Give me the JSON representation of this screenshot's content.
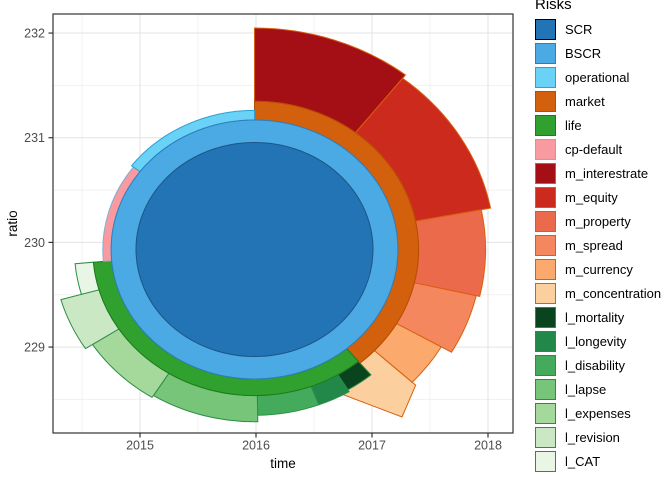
{
  "figure": {
    "background": "#ffffff",
    "panel_border": "#333333",
    "grid_major": "#e3e3e3",
    "grid_minor": "#f1f1f1"
  },
  "axes": {
    "xlabel": "time",
    "ylabel": "ratio",
    "x_tick_labels": [
      "2015",
      "2016",
      "2017",
      "2018"
    ],
    "y_tick_labels": [
      "229",
      "230",
      "231",
      "232"
    ],
    "tick_color": "#4d4d4d"
  },
  "legend": {
    "title": "Risks",
    "items": [
      {
        "label": "SCR",
        "fill": "#2374b4",
        "border": "#000000"
      },
      {
        "label": "BSCR",
        "fill": "#4ba9e3",
        "border": "#2e7ebc"
      },
      {
        "label": "operational",
        "fill": "#6ad1f7",
        "border": "#2e9fd4"
      },
      {
        "label": "market",
        "fill": "#d3600d",
        "border": "#b54e00"
      },
      {
        "label": "life",
        "fill": "#30a02e",
        "border": "#207b20"
      },
      {
        "label": "cp-default",
        "fill": "#f89aa0",
        "border": "#85aed3"
      },
      {
        "label": "m_interestrate",
        "fill": "#a40f15",
        "border": "#d95f0e"
      },
      {
        "label": "m_equity",
        "fill": "#cb2a1d",
        "border": "#d95f0e"
      },
      {
        "label": "m_property",
        "fill": "#eb6a4b",
        "border": "#d95f0e"
      },
      {
        "label": "m_spread",
        "fill": "#f5875f",
        "border": "#d95f0e"
      },
      {
        "label": "m_currency",
        "fill": "#fca96e",
        "border": "#d95f0e"
      },
      {
        "label": "m_concentration",
        "fill": "#fccf9e",
        "border": "#d95f0e"
      },
      {
        "label": "l_mortality",
        "fill": "#09441f",
        "border": "#2c8c46"
      },
      {
        "label": "l_longevity",
        "fill": "#22884a",
        "border": "#2c8c46"
      },
      {
        "label": "l_disability",
        "fill": "#44ab5d",
        "border": "#2c8c46"
      },
      {
        "label": "l_lapse",
        "fill": "#77c578",
        "border": "#2c8c46"
      },
      {
        "label": "l_expenses",
        "fill": "#a4d99b",
        "border": "#2c8c46"
      },
      {
        "label": "l_revision",
        "fill": "#c9e8c3",
        "border": "#2c8c46"
      },
      {
        "label": "l_CAT",
        "fill": "#e9f6e5",
        "border": "#2c8c46"
      }
    ]
  },
  "chart_data": {
    "type": "sunburst",
    "xlabel": "time",
    "ylabel": "ratio",
    "x_ticks": [
      2015,
      2016,
      2017,
      2018
    ],
    "x_minor_ticks": [
      2014.5,
      2015.5,
      2016.5,
      2017.5
    ],
    "y_ticks": [
      229,
      230,
      231,
      232
    ],
    "y_minor_ticks": [
      228.5,
      229.5,
      230.5,
      231.5
    ],
    "xlim": [
      2014.33,
      2018.22
    ],
    "ylim": [
      228.17,
      232.18
    ],
    "grid": true,
    "legend_position": "right",
    "legend_title": "Risks",
    "center": {
      "time": 2016.0,
      "ratio": 229.87
    },
    "angle_convention": "degrees clockwise from 12 o'clock",
    "radius_unit": "multiples of SCR circle radius (approx. 1.02 data units)",
    "nodes": [
      {
        "name": "SCR",
        "level": 0,
        "parent": null,
        "shape": "circle",
        "r1": 1.0,
        "fill": "#2374b4",
        "stroke": "#1c5687",
        "z": 5
      },
      {
        "name": "BSCR",
        "level": 1,
        "parent": "SCR",
        "shape": "disc",
        "a0": 0,
        "a1": 360,
        "r0": 1.0,
        "r1": 1.21,
        "fill": "#4ba9e3",
        "stroke": "#2e7ebc",
        "z": 4
      },
      {
        "name": "market",
        "level": 2,
        "parent": "BSCR",
        "shape": "sector",
        "a0": 0,
        "a1": 140,
        "r0": 1.21,
        "r1": 1.385,
        "fill": "#d3600d",
        "stroke": "#b54e00",
        "z": 3
      },
      {
        "name": "life",
        "level": 2,
        "parent": "BSCR",
        "shape": "sector",
        "a0": 140,
        "a1": 265,
        "r0": 1.21,
        "r1": 1.365,
        "fill": "#30a02e",
        "stroke": "#207b20",
        "z": 3
      },
      {
        "name": "cp-default",
        "level": 2,
        "parent": "BSCR",
        "shape": "sector",
        "a0": 265,
        "a1": 307,
        "r0": 1.21,
        "r1": 1.28,
        "fill": "#f89aa0",
        "stroke": "#85aed3",
        "z": 3
      },
      {
        "name": "operational",
        "level": 2,
        "parent": "SCR",
        "shape": "sector",
        "a0": 307,
        "a1": 360,
        "r0": 1.21,
        "r1": 1.3,
        "fill": "#6ad1f7",
        "stroke": "#2e9fd4",
        "z": 3
      },
      {
        "name": "m_interestrate",
        "level": 3,
        "parent": "market",
        "shape": "sector",
        "a0": 0,
        "a1": 38,
        "r0": 1.385,
        "r1": 2.07,
        "fill": "#a40f15",
        "stroke": "#d95f0e",
        "z": 1
      },
      {
        "name": "m_equity",
        "level": 3,
        "parent": "market",
        "shape": "sector",
        "a0": 38,
        "a1": 79,
        "r0": 1.385,
        "r1": 2.03,
        "fill": "#cb2a1d",
        "stroke": "#d95f0e",
        "z": 1
      },
      {
        "name": "m_property",
        "level": 3,
        "parent": "market",
        "shape": "sector",
        "a0": 79,
        "a1": 103,
        "r0": 1.385,
        "r1": 1.95,
        "fill": "#eb6a4b",
        "stroke": "#d95f0e",
        "z": 1
      },
      {
        "name": "m_spread",
        "level": 3,
        "parent": "market",
        "shape": "sector",
        "a0": 103,
        "a1": 120,
        "r0": 1.385,
        "r1": 1.92,
        "fill": "#f5875f",
        "stroke": "#d95f0e",
        "z": 1
      },
      {
        "name": "m_currency",
        "level": 3,
        "parent": "market",
        "shape": "sector",
        "a0": 120,
        "a1": 133,
        "r0": 1.385,
        "r1": 1.82,
        "fill": "#fca96e",
        "stroke": "#d95f0e",
        "z": 1
      },
      {
        "name": "m_concentration",
        "level": 3,
        "parent": "market",
        "shape": "pointed",
        "a0": 133,
        "a1": 152,
        "r0": 1.385,
        "r1_start": 1.86,
        "tip_a": 141.5,
        "tip_r": 2.0,
        "r1_end": 1.52,
        "fill": "#fccf9e",
        "stroke": "#d95f0e",
        "z": 0
      },
      {
        "name": "l_mortality",
        "level": 3,
        "parent": "life",
        "shape": "sector",
        "a0": 140,
        "a1": 149,
        "r0": 1.365,
        "r1": 1.53,
        "fill": "#09441f",
        "stroke": "#2c8c46",
        "z": 2
      },
      {
        "name": "l_longevity",
        "level": 3,
        "parent": "life",
        "shape": "sector",
        "a0": 149,
        "a1": 159.5,
        "r0": 1.365,
        "r1": 1.55,
        "fill": "#22884a",
        "stroke": "#2c8c46",
        "z": 2
      },
      {
        "name": "l_disability",
        "level": 3,
        "parent": "life",
        "shape": "sector",
        "a0": 159.5,
        "a1": 179,
        "r0": 1.365,
        "r1": 1.55,
        "fill": "#44ab5d",
        "stroke": "#2c8c46",
        "z": 2
      },
      {
        "name": "l_lapse",
        "level": 3,
        "parent": "life",
        "shape": "sector",
        "a0": 179,
        "a1": 212,
        "r0": 1.365,
        "r1": 1.61,
        "fill": "#77c578",
        "stroke": "#2c8c46",
        "z": 2
      },
      {
        "name": "l_expenses",
        "level": 3,
        "parent": "life",
        "shape": "sector",
        "a0": 212,
        "a1": 237,
        "r0": 1.365,
        "r1": 1.63,
        "fill": "#a4d99b",
        "stroke": "#2c8c46",
        "z": 2
      },
      {
        "name": "l_revision",
        "level": 3,
        "parent": "life",
        "shape": "sector",
        "a0": 237,
        "a1": 254,
        "r0": 1.365,
        "r1": 1.7,
        "fill": "#c9e8c3",
        "stroke": "#2c8c46",
        "z": 2
      },
      {
        "name": "l_CAT",
        "level": 3,
        "parent": "life",
        "shape": "sector",
        "a0": 254,
        "a1": 265,
        "r0": 1.365,
        "r1": 1.52,
        "fill": "#e9f6e5",
        "stroke": "#2c8c46",
        "z": 2
      }
    ]
  }
}
